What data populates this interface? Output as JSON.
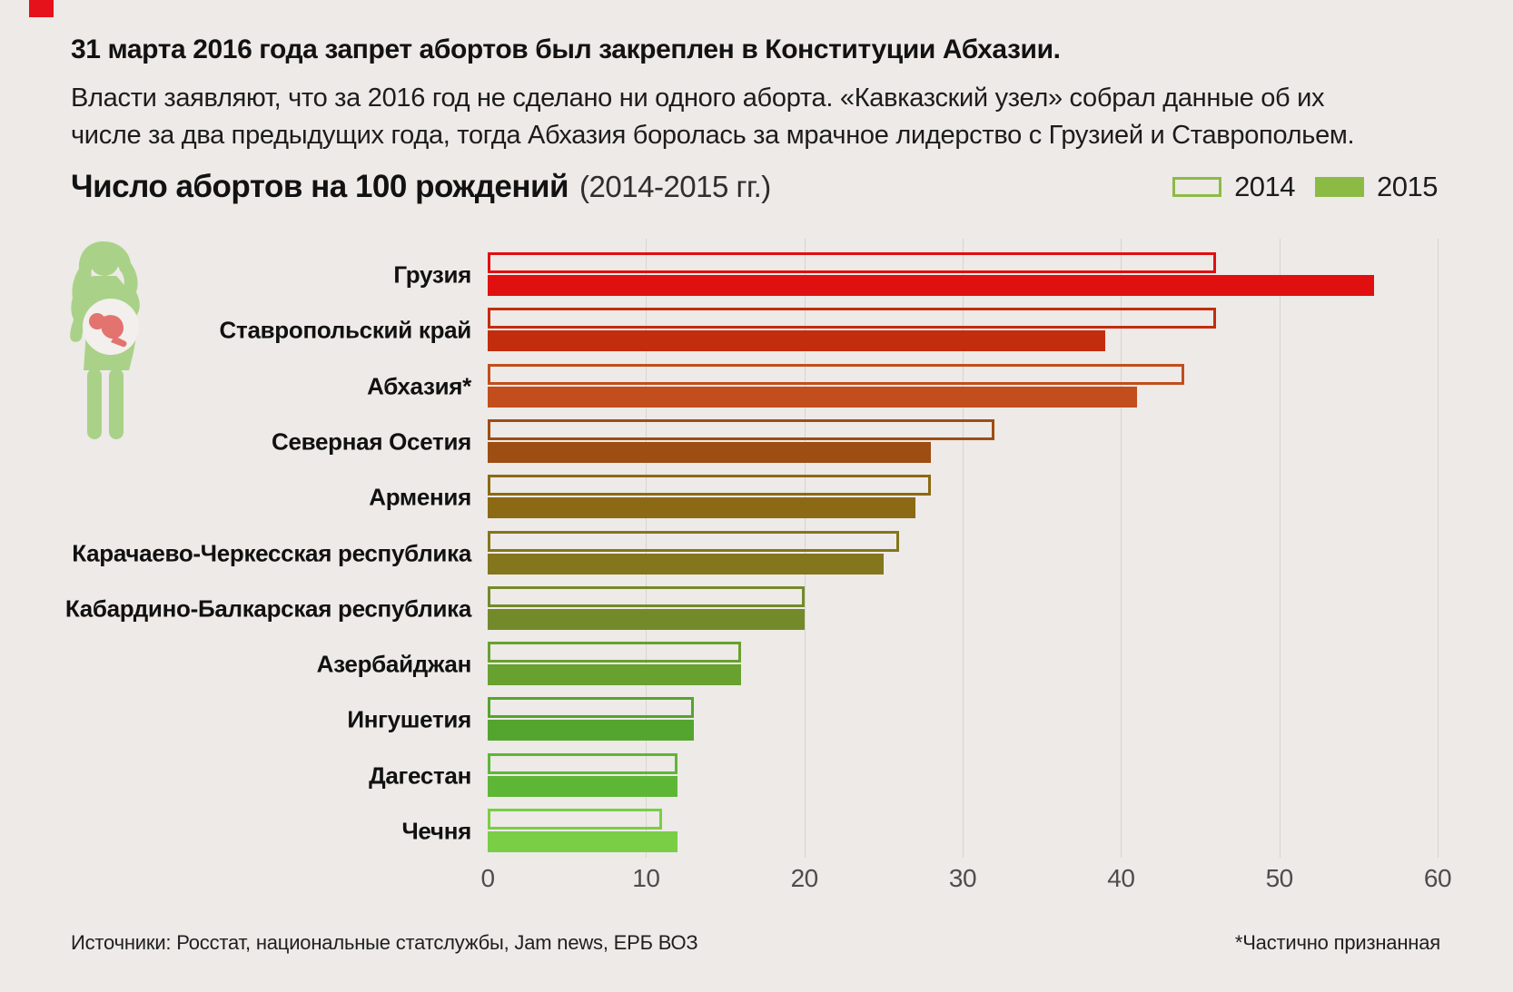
{
  "page": {
    "background_color": "#edeae7",
    "accent_mark_color": "#e5121b"
  },
  "header": {
    "title": "31 марта 2016 года запрет абортов был закреплен в Конституции Абхазии.",
    "subtitle_line1": "Власти заявляют, что за 2016 год не сделано ни одного аборта. «Кавказский узел» собрал данные об их",
    "subtitle_line2": "числе за два предыдущих года, тогда Абхазия боролась за мрачное лидерство с Грузией и Ставропольем."
  },
  "chart_data": {
    "type": "bar",
    "orientation": "horizontal",
    "title": "Число абортов на 100 рождений",
    "period": "(2014-2015 гг.)",
    "legend": {
      "first_label": "2014",
      "first_style": "outline",
      "second_label": "2015",
      "second_style": "solid",
      "color": "#8cbb45",
      "position": "top-right"
    },
    "icon": "pregnant-woman-with-fetus",
    "icon_colors": {
      "body": "#a9d288",
      "belly": "#f2efec",
      "fetus": "#e2736e"
    },
    "categories": [
      "Грузия",
      "Ставропольский край",
      "Абхазия*",
      "Северная Осетия",
      "Армения",
      "Карачаево-Черкесская республика",
      "Кабардино-Балкарская республика",
      "Азербайджан",
      "Ингушетия",
      "Дагестан",
      "Чечня"
    ],
    "series": [
      {
        "name": "2014",
        "style": "outline",
        "values": [
          46,
          46,
          44,
          32,
          28,
          26,
          20,
          16,
          13,
          12,
          11
        ]
      },
      {
        "name": "2015",
        "style": "solid",
        "values": [
          56,
          39,
          41,
          28,
          27,
          25,
          20,
          16,
          13,
          12,
          12
        ]
      }
    ],
    "row_colors": [
      "#e01010",
      "#c22d0e",
      "#c14e1c",
      "#9e4d13",
      "#8c6914",
      "#83761c",
      "#738a2b",
      "#68a12f",
      "#54a52f",
      "#5eb637",
      "#79ce45"
    ],
    "x_axis": {
      "ticks": [
        0,
        10,
        20,
        30,
        40,
        50,
        60
      ],
      "max": 60,
      "gridlines": [
        10,
        20,
        30,
        40,
        50,
        60
      ],
      "gridline_color": "#d9d4d0"
    }
  },
  "footer": {
    "sources": "Источники: Росстат, национальные статслужбы, Jam news, ЕРБ ВОЗ",
    "note": "*Частично признанная"
  }
}
